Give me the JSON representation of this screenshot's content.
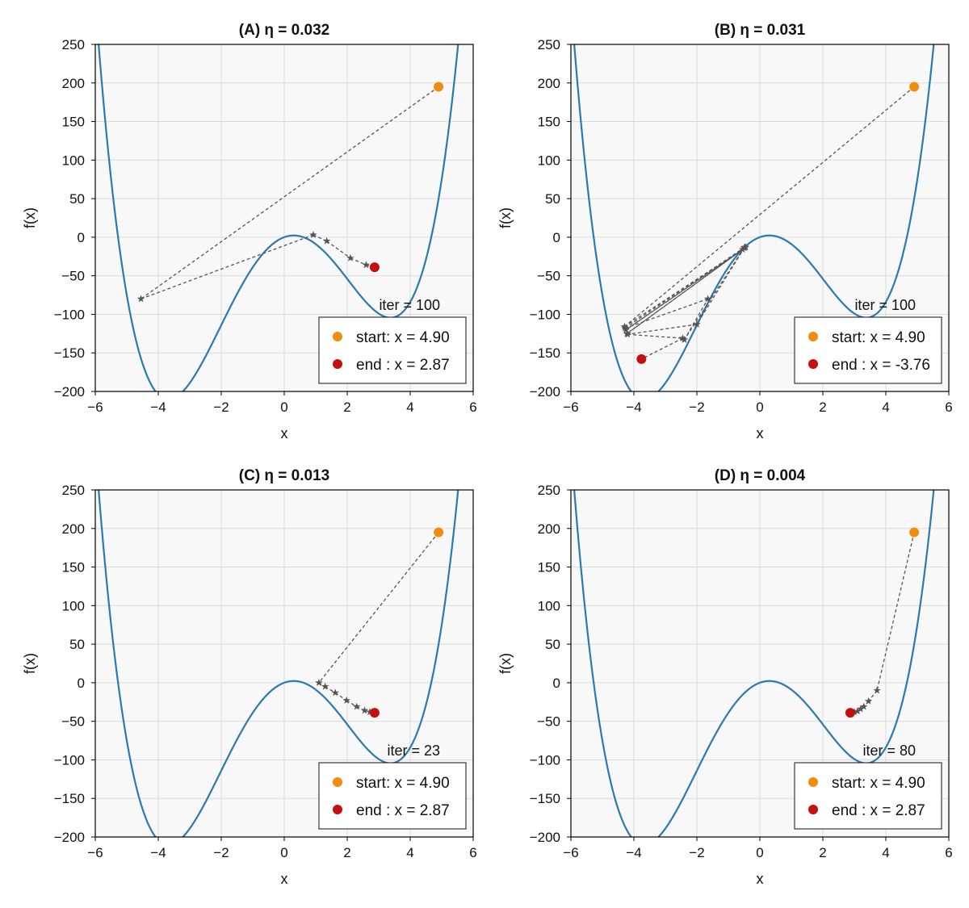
{
  "chart_data": [
    {
      "type": "line",
      "title": "(A)  η = 0.032",
      "xlabel": "x",
      "ylabel": "f(x)",
      "xlim": [
        -6,
        6
      ],
      "ylim": [
        -200,
        250
      ],
      "xticks": [
        -6,
        -4,
        -2,
        0,
        2,
        4,
        6
      ],
      "yticks": [
        -200,
        -150,
        -100,
        -50,
        0,
        50,
        100,
        150,
        200,
        250
      ],
      "xtick_labels": [
        "−6",
        "−4",
        "−2",
        "0",
        "2",
        "4",
        "6"
      ],
      "ytick_labels": [
        "−200",
        "−150",
        "−100",
        "−50",
        "0",
        "50",
        "100",
        "150",
        "200",
        "250"
      ],
      "grid": true,
      "curve_color": "#2a7ab0",
      "path_color": "#555555",
      "start_color": "#f28c0f",
      "end_color": "#c60f0f",
      "annotation": "iter = 100",
      "legend_position": "bottom-right",
      "legend": [
        "start: x = 4.90",
        "end : x = 2.87"
      ],
      "start": {
        "x": 4.9,
        "y": 195
      },
      "end": {
        "x": 2.87,
        "y": -39
      },
      "path": [
        [
          4.9,
          195
        ],
        [
          -4.55,
          -80
        ],
        [
          0.92,
          3
        ],
        [
          1.35,
          -5
        ],
        [
          2.1,
          -27
        ],
        [
          2.6,
          -36
        ],
        [
          2.87,
          -39
        ]
      ],
      "path_solid": false
    },
    {
      "type": "line",
      "title": "(B)  η = 0.031",
      "xlabel": "x",
      "ylabel": "f(x)",
      "xlim": [
        -6,
        6
      ],
      "ylim": [
        -200,
        250
      ],
      "xticks": [
        -6,
        -4,
        -2,
        0,
        2,
        4,
        6
      ],
      "yticks": [
        -200,
        -150,
        -100,
        -50,
        0,
        50,
        100,
        150,
        200,
        250
      ],
      "xtick_labels": [
        "−6",
        "−4",
        "−2",
        "0",
        "2",
        "4",
        "6"
      ],
      "ytick_labels": [
        "−200",
        "−150",
        "−100",
        "−50",
        "0",
        "50",
        "100",
        "150",
        "200",
        "250"
      ],
      "grid": true,
      "curve_color": "#2a7ab0",
      "path_color": "#555555",
      "start_color": "#f28c0f",
      "end_color": "#c60f0f",
      "annotation": "iter = 100",
      "legend_position": "bottom-right",
      "legend": [
        "start: x = 4.90",
        "end : x = -3.76"
      ],
      "start": {
        "x": 4.9,
        "y": 195
      },
      "end": {
        "x": -3.76,
        "y": -158
      },
      "path": [
        [
          4.9,
          195
        ],
        [
          -4.3,
          -116
        ],
        [
          -0.45,
          -13
        ],
        [
          -4.22,
          -125
        ],
        [
          -0.55,
          -16
        ],
        [
          -4.25,
          -120
        ],
        [
          -0.5,
          -14
        ],
        [
          -2.4,
          -133
        ],
        [
          -1.65,
          -80
        ],
        [
          -4.28,
          -118
        ],
        [
          -0.48,
          -13
        ],
        [
          -2.0,
          -113
        ],
        [
          -4.2,
          -126
        ],
        [
          -2.45,
          -131
        ],
        [
          -3.76,
          -158
        ]
      ],
      "path_solid": false
    },
    {
      "type": "line",
      "title": "(C)  η = 0.013",
      "xlabel": "x",
      "ylabel": "f(x)",
      "xlim": [
        -6,
        6
      ],
      "ylim": [
        -200,
        250
      ],
      "xticks": [
        -6,
        -4,
        -2,
        0,
        2,
        4,
        6
      ],
      "yticks": [
        -200,
        -150,
        -100,
        -50,
        0,
        50,
        100,
        150,
        200,
        250
      ],
      "xtick_labels": [
        "−6",
        "−4",
        "−2",
        "0",
        "2",
        "4",
        "6"
      ],
      "ytick_labels": [
        "−200",
        "−150",
        "−100",
        "−50",
        "0",
        "50",
        "100",
        "150",
        "200",
        "250"
      ],
      "grid": true,
      "curve_color": "#2a7ab0",
      "path_color": "#555555",
      "start_color": "#f28c0f",
      "end_color": "#c60f0f",
      "annotation": "iter = 23",
      "legend_position": "bottom-right",
      "legend": [
        "start: x = 4.90",
        "end : x = 2.87"
      ],
      "start": {
        "x": 4.9,
        "y": 195
      },
      "end": {
        "x": 2.87,
        "y": -39
      },
      "path": [
        [
          4.9,
          195
        ],
        [
          1.1,
          0
        ],
        [
          1.3,
          -5
        ],
        [
          1.62,
          -13
        ],
        [
          1.98,
          -23
        ],
        [
          2.3,
          -31
        ],
        [
          2.55,
          -36
        ],
        [
          2.72,
          -38
        ],
        [
          2.87,
          -39
        ]
      ],
      "path_solid": false
    },
    {
      "type": "line",
      "title": "(D)  η = 0.004",
      "xlabel": "x",
      "ylabel": "f(x)",
      "xlim": [
        -6,
        6
      ],
      "ylim": [
        -200,
        250
      ],
      "xticks": [
        -6,
        -4,
        -2,
        0,
        2,
        4,
        6
      ],
      "yticks": [
        -200,
        -150,
        -100,
        -50,
        0,
        50,
        100,
        150,
        200,
        250
      ],
      "xtick_labels": [
        "−6",
        "−4",
        "−2",
        "0",
        "2",
        "4",
        "6"
      ],
      "ytick_labels": [
        "−200",
        "−150",
        "−100",
        "−50",
        "0",
        "50",
        "100",
        "150",
        "200",
        "250"
      ],
      "grid": true,
      "curve_color": "#2a7ab0",
      "path_color": "#555555",
      "start_color": "#f28c0f",
      "end_color": "#c60f0f",
      "annotation": "iter = 80",
      "legend_position": "bottom-right",
      "legend": [
        "start: x = 4.90",
        "end : x = 2.87"
      ],
      "start": {
        "x": 4.9,
        "y": 195
      },
      "end": {
        "x": 2.87,
        "y": -39
      },
      "path": [
        [
          4.9,
          195
        ],
        [
          3.72,
          -10
        ],
        [
          3.45,
          -24
        ],
        [
          3.3,
          -31
        ],
        [
          3.2,
          -34
        ],
        [
          3.1,
          -37
        ],
        [
          3.0,
          -38
        ],
        [
          2.87,
          -39
        ]
      ],
      "path_solid": false
    }
  ]
}
